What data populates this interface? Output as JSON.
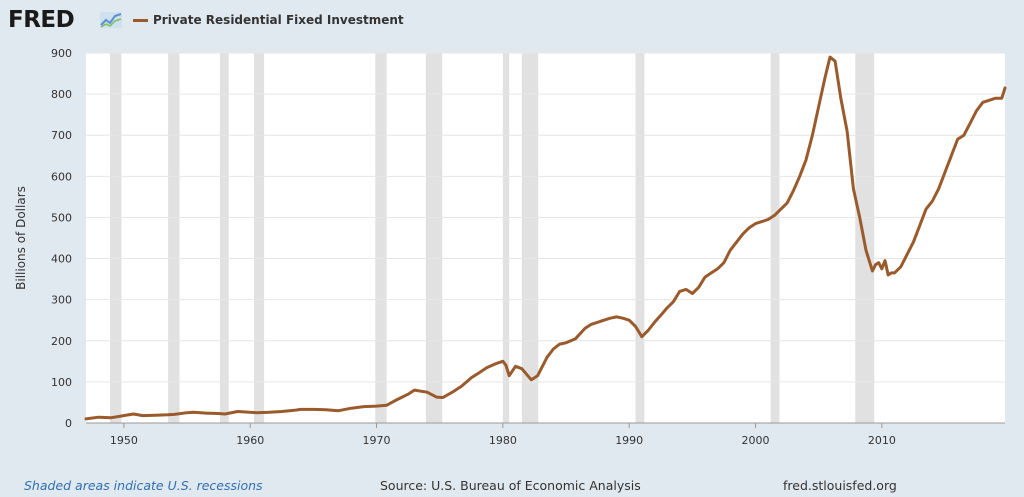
{
  "header": {
    "logo_text": "FRED",
    "logo_icon": "fred-trend-line-icon"
  },
  "legend": {
    "series_label": "Private Residential Fixed Investment",
    "color": "#9a5a2b"
  },
  "footer": {
    "recession_note": "Shaded areas indicate U.S. recessions",
    "source": "Source: U.S. Bureau of Economic Analysis",
    "site": "fred.stlouisfed.org"
  },
  "colors": {
    "background": "#e1e9f0",
    "plot_area": "#ffffff",
    "recession_band": "#e1e1e1",
    "series_line": "#9a5a2b",
    "gridline": "#e6e6e6"
  },
  "chart_data": {
    "type": "line",
    "title": "",
    "xlabel": "",
    "ylabel": "Billions of Dollars",
    "xlim": [
      1947.0,
      2019.75
    ],
    "ylim": [
      0,
      900
    ],
    "x_ticks": [
      1950,
      1960,
      1970,
      1980,
      1990,
      2000,
      2010
    ],
    "y_ticks": [
      0,
      100,
      200,
      300,
      400,
      500,
      600,
      700,
      800,
      900
    ],
    "grid": "horizontal",
    "legend_position": "top-left",
    "recessions": [
      [
        1948.9,
        1949.8
      ],
      [
        1953.5,
        1954.4
      ],
      [
        1957.6,
        1958.3
      ],
      [
        1960.3,
        1961.1
      ],
      [
        1969.9,
        1970.8
      ],
      [
        1973.9,
        1975.2
      ],
      [
        1980.0,
        1980.5
      ],
      [
        1981.5,
        1982.8
      ],
      [
        1990.5,
        1991.2
      ],
      [
        2001.2,
        2001.9
      ],
      [
        2007.9,
        2009.4
      ]
    ],
    "series": [
      {
        "name": "Private Residential Fixed Investment",
        "x": [
          1947.0,
          1948.0,
          1949.0,
          1950.0,
          1950.75,
          1951.5,
          1952.5,
          1953.5,
          1954.0,
          1955.0,
          1955.5,
          1956.5,
          1957.5,
          1958.0,
          1959.0,
          1959.5,
          1960.5,
          1961.5,
          1962.5,
          1963.5,
          1964.0,
          1965.0,
          1966.0,
          1967.0,
          1968.0,
          1969.0,
          1970.0,
          1970.8,
          1971.5,
          1972.5,
          1973.0,
          1974.0,
          1974.75,
          1975.25,
          1976.0,
          1976.75,
          1977.5,
          1978.0,
          1978.75,
          1979.5,
          1980.0,
          1980.25,
          1980.5,
          1981.0,
          1981.5,
          1982.25,
          1982.75,
          1983.5,
          1984.0,
          1984.5,
          1985.0,
          1985.75,
          1986.5,
          1987.0,
          1987.5,
          1988.0,
          1988.5,
          1989.0,
          1989.5,
          1990.0,
          1990.5,
          1991.0,
          1991.5,
          1992.0,
          1992.5,
          1993.0,
          1993.5,
          1994.0,
          1994.5,
          1995.0,
          1995.5,
          1996.0,
          1996.5,
          1997.0,
          1997.5,
          1998.0,
          1998.5,
          1999.0,
          1999.5,
          2000.0,
          2000.5,
          2001.0,
          2001.5,
          2002.0,
          2002.5,
          2003.0,
          2003.5,
          2004.0,
          2004.5,
          2005.0,
          2005.5,
          2005.9,
          2006.3,
          2006.75,
          2007.25,
          2007.75,
          2008.25,
          2008.75,
          2009.25,
          2009.5,
          2009.75,
          2010.0,
          2010.25,
          2010.5,
          2010.75,
          2011.0,
          2011.5,
          2012.0,
          2012.5,
          2013.0,
          2013.5,
          2014.0,
          2014.5,
          2015.0,
          2015.5,
          2016.0,
          2016.5,
          2017.0,
          2017.5,
          2018.0,
          2018.5,
          2019.0,
          2019.5,
          2019.75
        ],
        "values": [
          10,
          14,
          13,
          18,
          22,
          18,
          19,
          20,
          21,
          25,
          26,
          24,
          23,
          22,
          28,
          27,
          25,
          26,
          28,
          31,
          33,
          33,
          32,
          30,
          36,
          40,
          41,
          43,
          55,
          70,
          80,
          75,
          63,
          62,
          75,
          90,
          110,
          120,
          135,
          145,
          150,
          140,
          115,
          138,
          132,
          105,
          115,
          160,
          180,
          192,
          195,
          205,
          230,
          240,
          245,
          250,
          255,
          258,
          255,
          250,
          235,
          210,
          225,
          245,
          262,
          280,
          295,
          320,
          325,
          315,
          330,
          355,
          365,
          375,
          390,
          420,
          440,
          460,
          475,
          485,
          490,
          495,
          505,
          520,
          535,
          565,
          600,
          640,
          700,
          770,
          840,
          890,
          880,
          790,
          710,
          570,
          500,
          420,
          370,
          385,
          390,
          375,
          395,
          360,
          365,
          365,
          380,
          410,
          440,
          480,
          520,
          540,
          570,
          610,
          650,
          690,
          700,
          730,
          760,
          780,
          785,
          790,
          790,
          815
        ]
      }
    ]
  }
}
